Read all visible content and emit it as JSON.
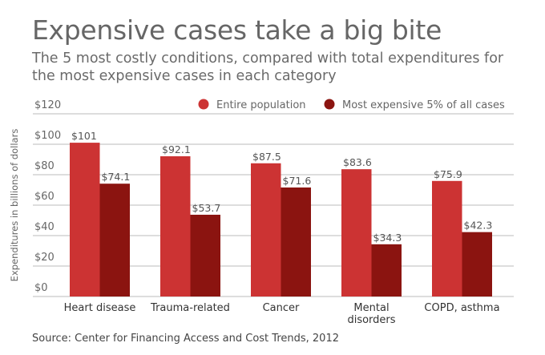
{
  "header": {
    "title": "Expensive cases take a big bite",
    "subtitle": "The 5 most costly conditions, compared with total expenditures for the most expensive cases in each category"
  },
  "source": "Source: Center for Financing Access and Cost Trends, 2012",
  "chart_data": {
    "type": "bar",
    "title": "Expensive cases take a big bite",
    "subtitle": "The 5 most costly conditions, compared with total expenditures for the most expensive cases in each category",
    "xlabel": "",
    "ylabel": "Expenditures in billions of dollars",
    "ylim": [
      0,
      120
    ],
    "yticks": [
      0,
      20,
      40,
      60,
      80,
      100,
      120
    ],
    "ytick_labels": [
      "$0",
      "$20",
      "$40",
      "$60",
      "$80",
      "$100",
      "$120"
    ],
    "grid": true,
    "legend_position": "top-right",
    "categories": [
      "Heart disease",
      "Trauma-related",
      "Cancer",
      "Mental disorders",
      "COPD, asthma"
    ],
    "category_lines": [
      [
        "Heart disease"
      ],
      [
        "Trauma-related"
      ],
      [
        "Cancer"
      ],
      [
        "Mental",
        "disorders"
      ],
      [
        "COPD, asthma"
      ]
    ],
    "series": [
      {
        "name": "Entire population",
        "color": "#cc3333",
        "values": [
          101,
          92.1,
          87.5,
          83.6,
          75.9
        ],
        "labels": [
          "$101",
          "$92.1",
          "$87.5",
          "$83.6",
          "$75.9"
        ]
      },
      {
        "name": "Most expensive 5% of all cases",
        "color": "#8b1410",
        "values": [
          74.1,
          53.7,
          71.6,
          34.3,
          42.3
        ],
        "labels": [
          "$74.1",
          "$53.7",
          "$71.6",
          "$34.3",
          "$42.3"
        ]
      }
    ],
    "source": "Source: Center for Financing Access and Cost Trends, 2012"
  },
  "colors": {
    "gridline": "#bbbbbb",
    "text": "#666666"
  }
}
